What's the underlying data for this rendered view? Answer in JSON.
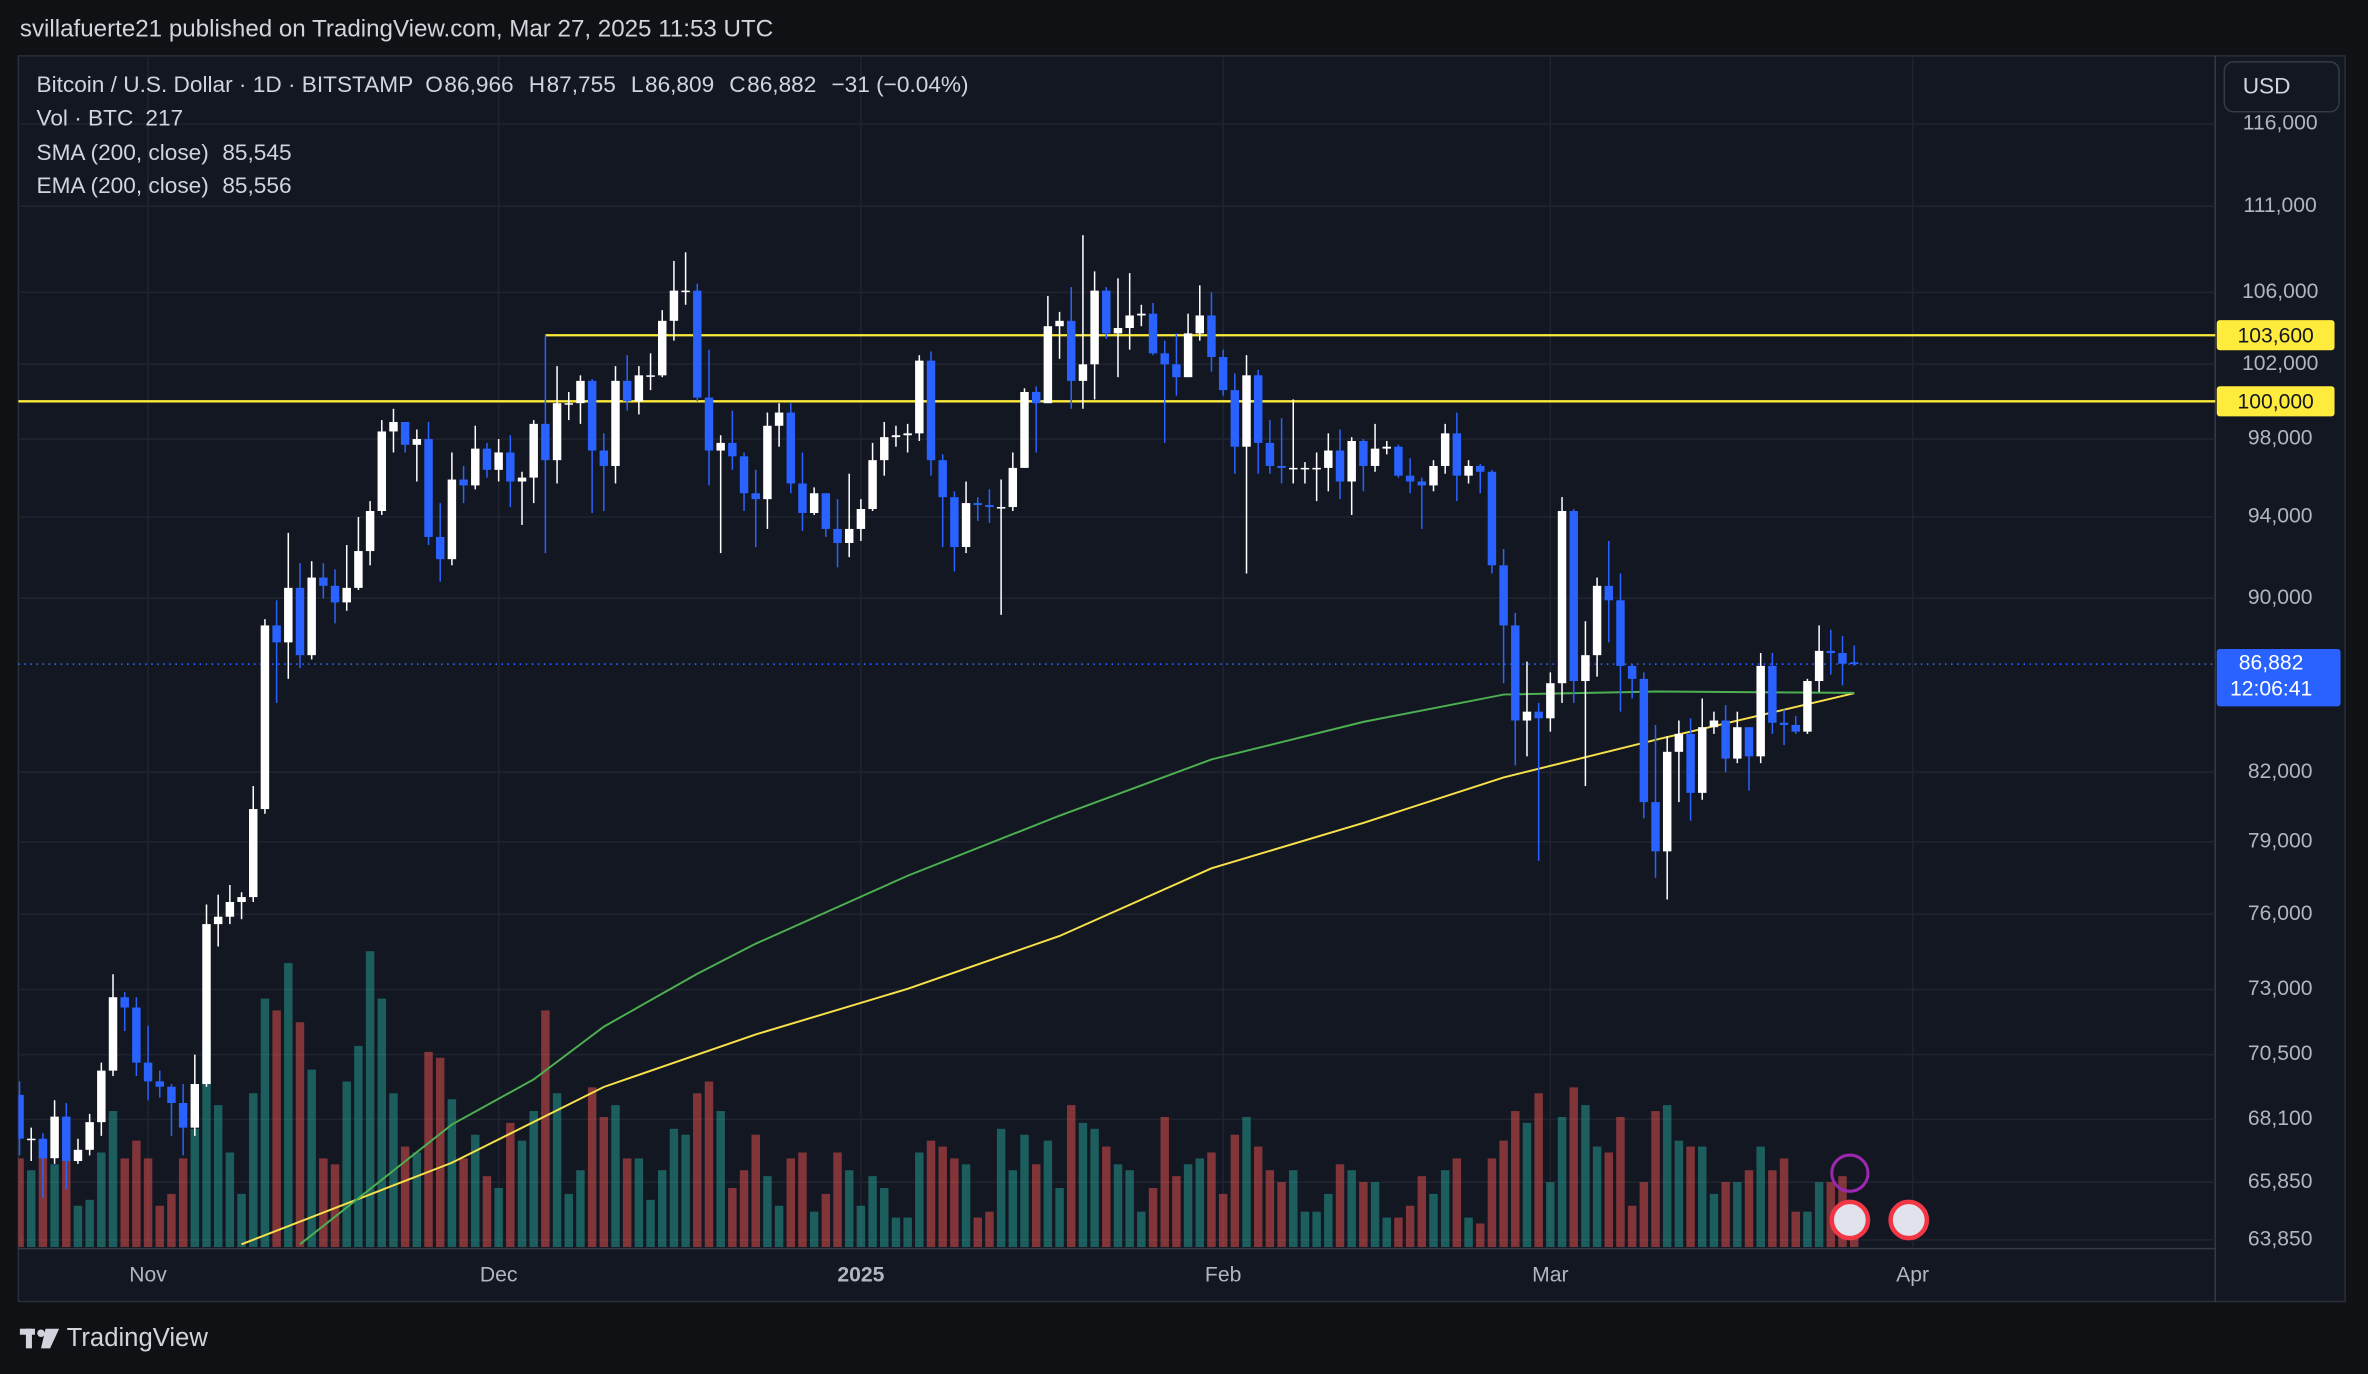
{
  "header": "svillafuerte21 published on TradingView.com, Mar 27, 2025 11:53 UTC",
  "footer": "TradingView",
  "currency_button": "USD",
  "chart_data": {
    "type": "candlestick",
    "title": "Bitcoin / U.S. Dollar · 1D · BITSTAMP",
    "ohlc_legend": [
      {
        "key": "O",
        "value": {
          "value": 86966,
          "label": "86,966"
        }
      },
      {
        "key": "H",
        "value": {
          "value": 87755,
          "label": "87,755"
        }
      },
      {
        "key": "L",
        "value": {
          "value": 86809,
          "label": "86,809"
        }
      },
      {
        "key": "C",
        "value": {
          "value": 86882,
          "label": "86,882"
        }
      }
    ],
    "change": {
      "value": -31,
      "label": "−31 (−0.04%)"
    },
    "legend_value_color": "#4a7dff",
    "volume_legend": {
      "label": "Vol · BTC",
      "value": 217,
      "color": "#f23645"
    },
    "log_scale": true,
    "grid": true,
    "up_color": "#ffffff",
    "down_color": "#2962ff",
    "volume_up_color": "#26a69a",
    "volume_down_color": "#ef5350",
    "xlim": [
      -0.1,
      187.9
    ],
    "xticks": [
      {
        "value": 11,
        "label": "Nov"
      },
      {
        "value": 41,
        "label": "Dec"
      },
      {
        "value": 72,
        "label": "2025"
      },
      {
        "value": 103,
        "label": "Feb"
      },
      {
        "value": 131,
        "label": "Mar"
      },
      {
        "value": 162,
        "label": "Apr"
      }
    ],
    "ylim": [
      63600,
      120300
    ],
    "yticks": [
      {
        "value": 63850,
        "label": "63,850"
      },
      {
        "value": 65850,
        "label": "65,850"
      },
      {
        "value": 68100,
        "label": "68,100"
      },
      {
        "value": 70500,
        "label": "70,500"
      },
      {
        "value": 73000,
        "label": "73,000"
      },
      {
        "value": 76000,
        "label": "76,000"
      },
      {
        "value": 79000,
        "label": "79,000"
      },
      {
        "value": 82000,
        "label": "82,000"
      },
      {
        "value": 90000,
        "label": "90,000"
      },
      {
        "value": 94000,
        "label": "94,000"
      },
      {
        "value": 98000,
        "label": "98,000"
      },
      {
        "value": 102000,
        "label": "102,000"
      },
      {
        "value": 106000,
        "label": "106,000"
      },
      {
        "value": 111000,
        "label": "111,000"
      },
      {
        "value": 116000,
        "label": "116,000"
      }
    ],
    "open": [
      69000,
      67400,
      67400,
      66700,
      68200,
      66600,
      67000,
      68000,
      69900,
      72700,
      72300,
      70200,
      69500,
      69300,
      68700,
      67800,
      69400,
      75600,
      75900,
      76500,
      76700,
      80400,
      88700,
      87900,
      90500,
      87300,
      91000,
      90600,
      89800,
      90500,
      92300,
      94300,
      98400,
      98900,
      97700,
      98000,
      93000,
      91900,
      95900,
      95600,
      97500,
      96400,
      97300,
      95800,
      96000,
      98800,
      96900,
      99900,
      99900,
      101100,
      97400,
      96600,
      101100,
      100000,
      101400,
      101400,
      104400,
      106100,
      106100,
      100200,
      97400,
      97800,
      97100,
      95200,
      94900,
      98700,
      99400,
      95700,
      94200,
      95200,
      93400,
      92700,
      93400,
      94400,
      96900,
      98100,
      98200,
      98300,
      102200,
      96900,
      95000,
      92500,
      94700,
      94600,
      94500,
      94500,
      96500,
      100500,
      99900,
      104100,
      104400,
      101100,
      102000,
      106100,
      103700,
      104000,
      104700,
      104800,
      102600,
      102000,
      101300,
      103700,
      104700,
      102400,
      100600,
      97600,
      101400,
      97800,
      96600,
      96500,
      96500,
      96500,
      96500,
      97400,
      95800,
      97900,
      96600,
      97500,
      97600,
      96100,
      95800,
      95600,
      96600,
      98300,
      96100,
      96600,
      96300,
      91600,
      88700,
      84300,
      84700,
      84400,
      86000,
      94300,
      86100,
      87300,
      90600,
      89900,
      86800,
      86200,
      80700,
      78600,
      82900,
      83700,
      81100,
      84000,
      84300,
      82600,
      84000,
      82700,
      86800,
      84200,
      84100,
      83800,
      86100,
      87500,
      87400,
      86966
    ],
    "high": [
      69500,
      67800,
      67600,
      68800,
      68700,
      67400,
      68300,
      70200,
      73600,
      72900,
      72700,
      71600,
      69900,
      69400,
      69400,
      70500,
      76400,
      76800,
      77200,
      76900,
      81400,
      89000,
      89900,
      93200,
      91700,
      91800,
      91700,
      91400,
      92600,
      94000,
      94800,
      99000,
      99600,
      98900,
      98500,
      98900,
      94700,
      97300,
      96600,
      98700,
      97800,
      98000,
      98200,
      96300,
      99000,
      103600,
      101900,
      100500,
      101400,
      101200,
      98300,
      101900,
      102500,
      101900,
      102600,
      105000,
      107800,
      108300,
      106500,
      102800,
      98200,
      99500,
      97300,
      96400,
      99400,
      99900,
      99900,
      97300,
      95500,
      95200,
      94900,
      96200,
      94900,
      97800,
      98900,
      98700,
      98800,
      102500,
      102700,
      97200,
      95300,
      95800,
      95000,
      95400,
      95900,
      97300,
      100700,
      100800,
      105800,
      104900,
      106300,
      109300,
      107200,
      106300,
      106800,
      107100,
      105300,
      105400,
      103300,
      103700,
      104800,
      106400,
      106000,
      102800,
      101500,
      102500,
      101700,
      99000,
      99100,
      100100,
      96800,
      97300,
      98300,
      98500,
      98100,
      98000,
      98800,
      97900,
      97700,
      97000,
      96000,
      96900,
      98800,
      99400,
      96900,
      96700,
      96400,
      92400,
      89300,
      87000,
      85100,
      86500,
      95000,
      94400,
      88900,
      91000,
      92800,
      91200,
      86900,
      86500,
      84100,
      83600,
      84300,
      84400,
      85300,
      84700,
      85000,
      84700,
      84000,
      87400,
      87400,
      84800,
      84500,
      86200,
      88700,
      88500,
      88200,
      87755
    ],
    "low": [
      66800,
      66600,
      65300,
      66500,
      65600,
      66500,
      66800,
      67500,
      69700,
      71400,
      69700,
      68800,
      68900,
      67500,
      66800,
      67500,
      69300,
      74700,
      75600,
      75800,
      76500,
      80200,
      85100,
      86200,
      86700,
      87100,
      90000,
      88800,
      89400,
      90400,
      91600,
      94100,
      97300,
      97300,
      95800,
      92600,
      90800,
      91600,
      94700,
      95400,
      96000,
      95800,
      94500,
      93600,
      94700,
      92200,
      95700,
      99000,
      98800,
      94200,
      94300,
      95700,
      99500,
      99300,
      100600,
      101300,
      103300,
      105300,
      100000,
      95600,
      92200,
      96400,
      94300,
      92500,
      93400,
      97600,
      95200,
      93300,
      94100,
      93000,
      91500,
      92000,
      92800,
      94300,
      96100,
      97600,
      97300,
      97900,
      96100,
      92500,
      91300,
      92200,
      93800,
      93700,
      89200,
      94300,
      96500,
      97300,
      99900,
      102300,
      99600,
      99600,
      100100,
      103400,
      101300,
      102800,
      104100,
      102500,
      97800,
      100300,
      101300,
      103300,
      101600,
      100300,
      96200,
      91200,
      96200,
      96200,
      95700,
      95700,
      95700,
      94800,
      95300,
      94900,
      94100,
      95300,
      96300,
      97200,
      96000,
      95200,
      93400,
      95300,
      96200,
      94800,
      95700,
      95200,
      91200,
      86000,
      82300,
      82700,
      78200,
      83800,
      85100,
      85100,
      81400,
      86300,
      87900,
      84700,
      85300,
      80000,
      77500,
      76600,
      80700,
      79900,
      80800,
      83700,
      82000,
      82400,
      81200,
      82400,
      83700,
      83200,
      83700,
      83700,
      85600,
      86400,
      85900,
      86809
    ],
    "close": [
      67400,
      67400,
      66700,
      68200,
      66600,
      67000,
      68000,
      69900,
      72700,
      72300,
      70200,
      69500,
      69300,
      68700,
      67800,
      69400,
      75600,
      75900,
      76500,
      76700,
      80400,
      88700,
      87900,
      90500,
      87300,
      91000,
      90600,
      89800,
      90500,
      92300,
      94300,
      98400,
      98900,
      97700,
      98000,
      93000,
      91900,
      95900,
      95600,
      97500,
      96400,
      97300,
      95800,
      96000,
      98800,
      96900,
      99900,
      99900,
      101100,
      97400,
      96600,
      101100,
      100000,
      101400,
      101400,
      104400,
      106100,
      106100,
      100200,
      97400,
      97800,
      97100,
      95200,
      94900,
      98700,
      99400,
      95700,
      94200,
      95200,
      93400,
      92700,
      93400,
      94400,
      96900,
      98100,
      98200,
      98300,
      102200,
      96900,
      95000,
      92500,
      94700,
      94600,
      94500,
      94500,
      96500,
      100500,
      99900,
      104100,
      104400,
      101100,
      102000,
      106100,
      103700,
      104000,
      104700,
      104800,
      102600,
      102000,
      101300,
      103700,
      104700,
      102400,
      100600,
      97600,
      101400,
      97800,
      96600,
      96500,
      96500,
      96500,
      96500,
      97400,
      95800,
      97900,
      96600,
      97500,
      97600,
      96100,
      95800,
      95600,
      96600,
      98300,
      96100,
      96600,
      96300,
      91600,
      88700,
      84300,
      84700,
      84400,
      86000,
      94300,
      86100,
      87300,
      90600,
      89900,
      86800,
      86200,
      80700,
      78600,
      82900,
      83700,
      81100,
      84000,
      84300,
      82600,
      84000,
      82700,
      86800,
      84200,
      84100,
      83800,
      86100,
      87500,
      87400,
      86900,
      86882
    ],
    "volume": [
      1500,
      1300,
      1800,
      1400,
      1700,
      700,
      800,
      1600,
      2300,
      1500,
      1800,
      1500,
      700,
      900,
      1500,
      2000,
      3500,
      2400,
      1600,
      900,
      2600,
      4200,
      4000,
      4800,
      3800,
      3000,
      1500,
      1400,
      2800,
      3400,
      5000,
      4200,
      2600,
      1700,
      1600,
      3300,
      3200,
      2500,
      1500,
      1900,
      1200,
      1000,
      2100,
      1800,
      2300,
      4000,
      2600,
      900,
      1300,
      2700,
      2200,
      2400,
      1500,
      1500,
      800,
      1300,
      2000,
      1900,
      2600,
      2800,
      2300,
      1000,
      1300,
      1900,
      1200,
      700,
      1500,
      1600,
      600,
      900,
      1600,
      1300,
      700,
      1200,
      1000,
      500,
      500,
      1600,
      1800,
      1700,
      1500,
      1400,
      500,
      600,
      2000,
      1300,
      1900,
      1400,
      1800,
      1000,
      2400,
      2100,
      2000,
      1700,
      1400,
      1300,
      600,
      1000,
      2200,
      1200,
      1400,
      1500,
      1600,
      900,
      1900,
      2200,
      1700,
      1300,
      1100,
      1300,
      600,
      600,
      900,
      1400,
      1300,
      1100,
      1100,
      500,
      500,
      700,
      1200,
      900,
      1300,
      1500,
      500,
      400,
      1500,
      1800,
      2300,
      2100,
      2600,
      1100,
      2200,
      2700,
      2400,
      1700,
      1600,
      2200,
      700,
      1100,
      2300,
      2400,
      1800,
      1700,
      1700,
      900,
      1100,
      1100,
      1300,
      1700,
      1300,
      1500,
      600,
      600,
      1100,
      1100,
      1200,
      217
    ],
    "moving_averages": [
      {
        "name": "SMA (200, close)",
        "color": "#f7e14a",
        "legend_value": {
          "value": 85545,
          "label": "85,545"
        },
        "x": [
          19,
          37,
          50,
          63,
          76,
          89,
          102,
          115,
          127,
          140,
          157
        ],
        "values": [
          63700,
          66540,
          69290,
          71270,
          73030,
          75120,
          77890,
          79810,
          81770,
          83430,
          85545
        ]
      },
      {
        "name": "EMA (200, close)",
        "color": "#4caf50",
        "legend_value": {
          "value": 85556,
          "label": "85,556"
        },
        "x": [
          24,
          37,
          44,
          50,
          58,
          63,
          76,
          89,
          102,
          115,
          127,
          140,
          157
        ],
        "values": [
          63700,
          67910,
          69570,
          71560,
          73620,
          74810,
          77580,
          80120,
          82560,
          84240,
          85480,
          85620,
          85556
        ]
      }
    ],
    "levels": [
      {
        "value": 103600,
        "label": "103,600",
        "color": "#ffeb3b"
      },
      {
        "value": 100000,
        "label": "100,000",
        "color": "#ffeb3b"
      }
    ],
    "last_price": {
      "value": 86882,
      "label": "86,882",
      "countdown": "12:06:41",
      "color": "#2962ff"
    }
  }
}
